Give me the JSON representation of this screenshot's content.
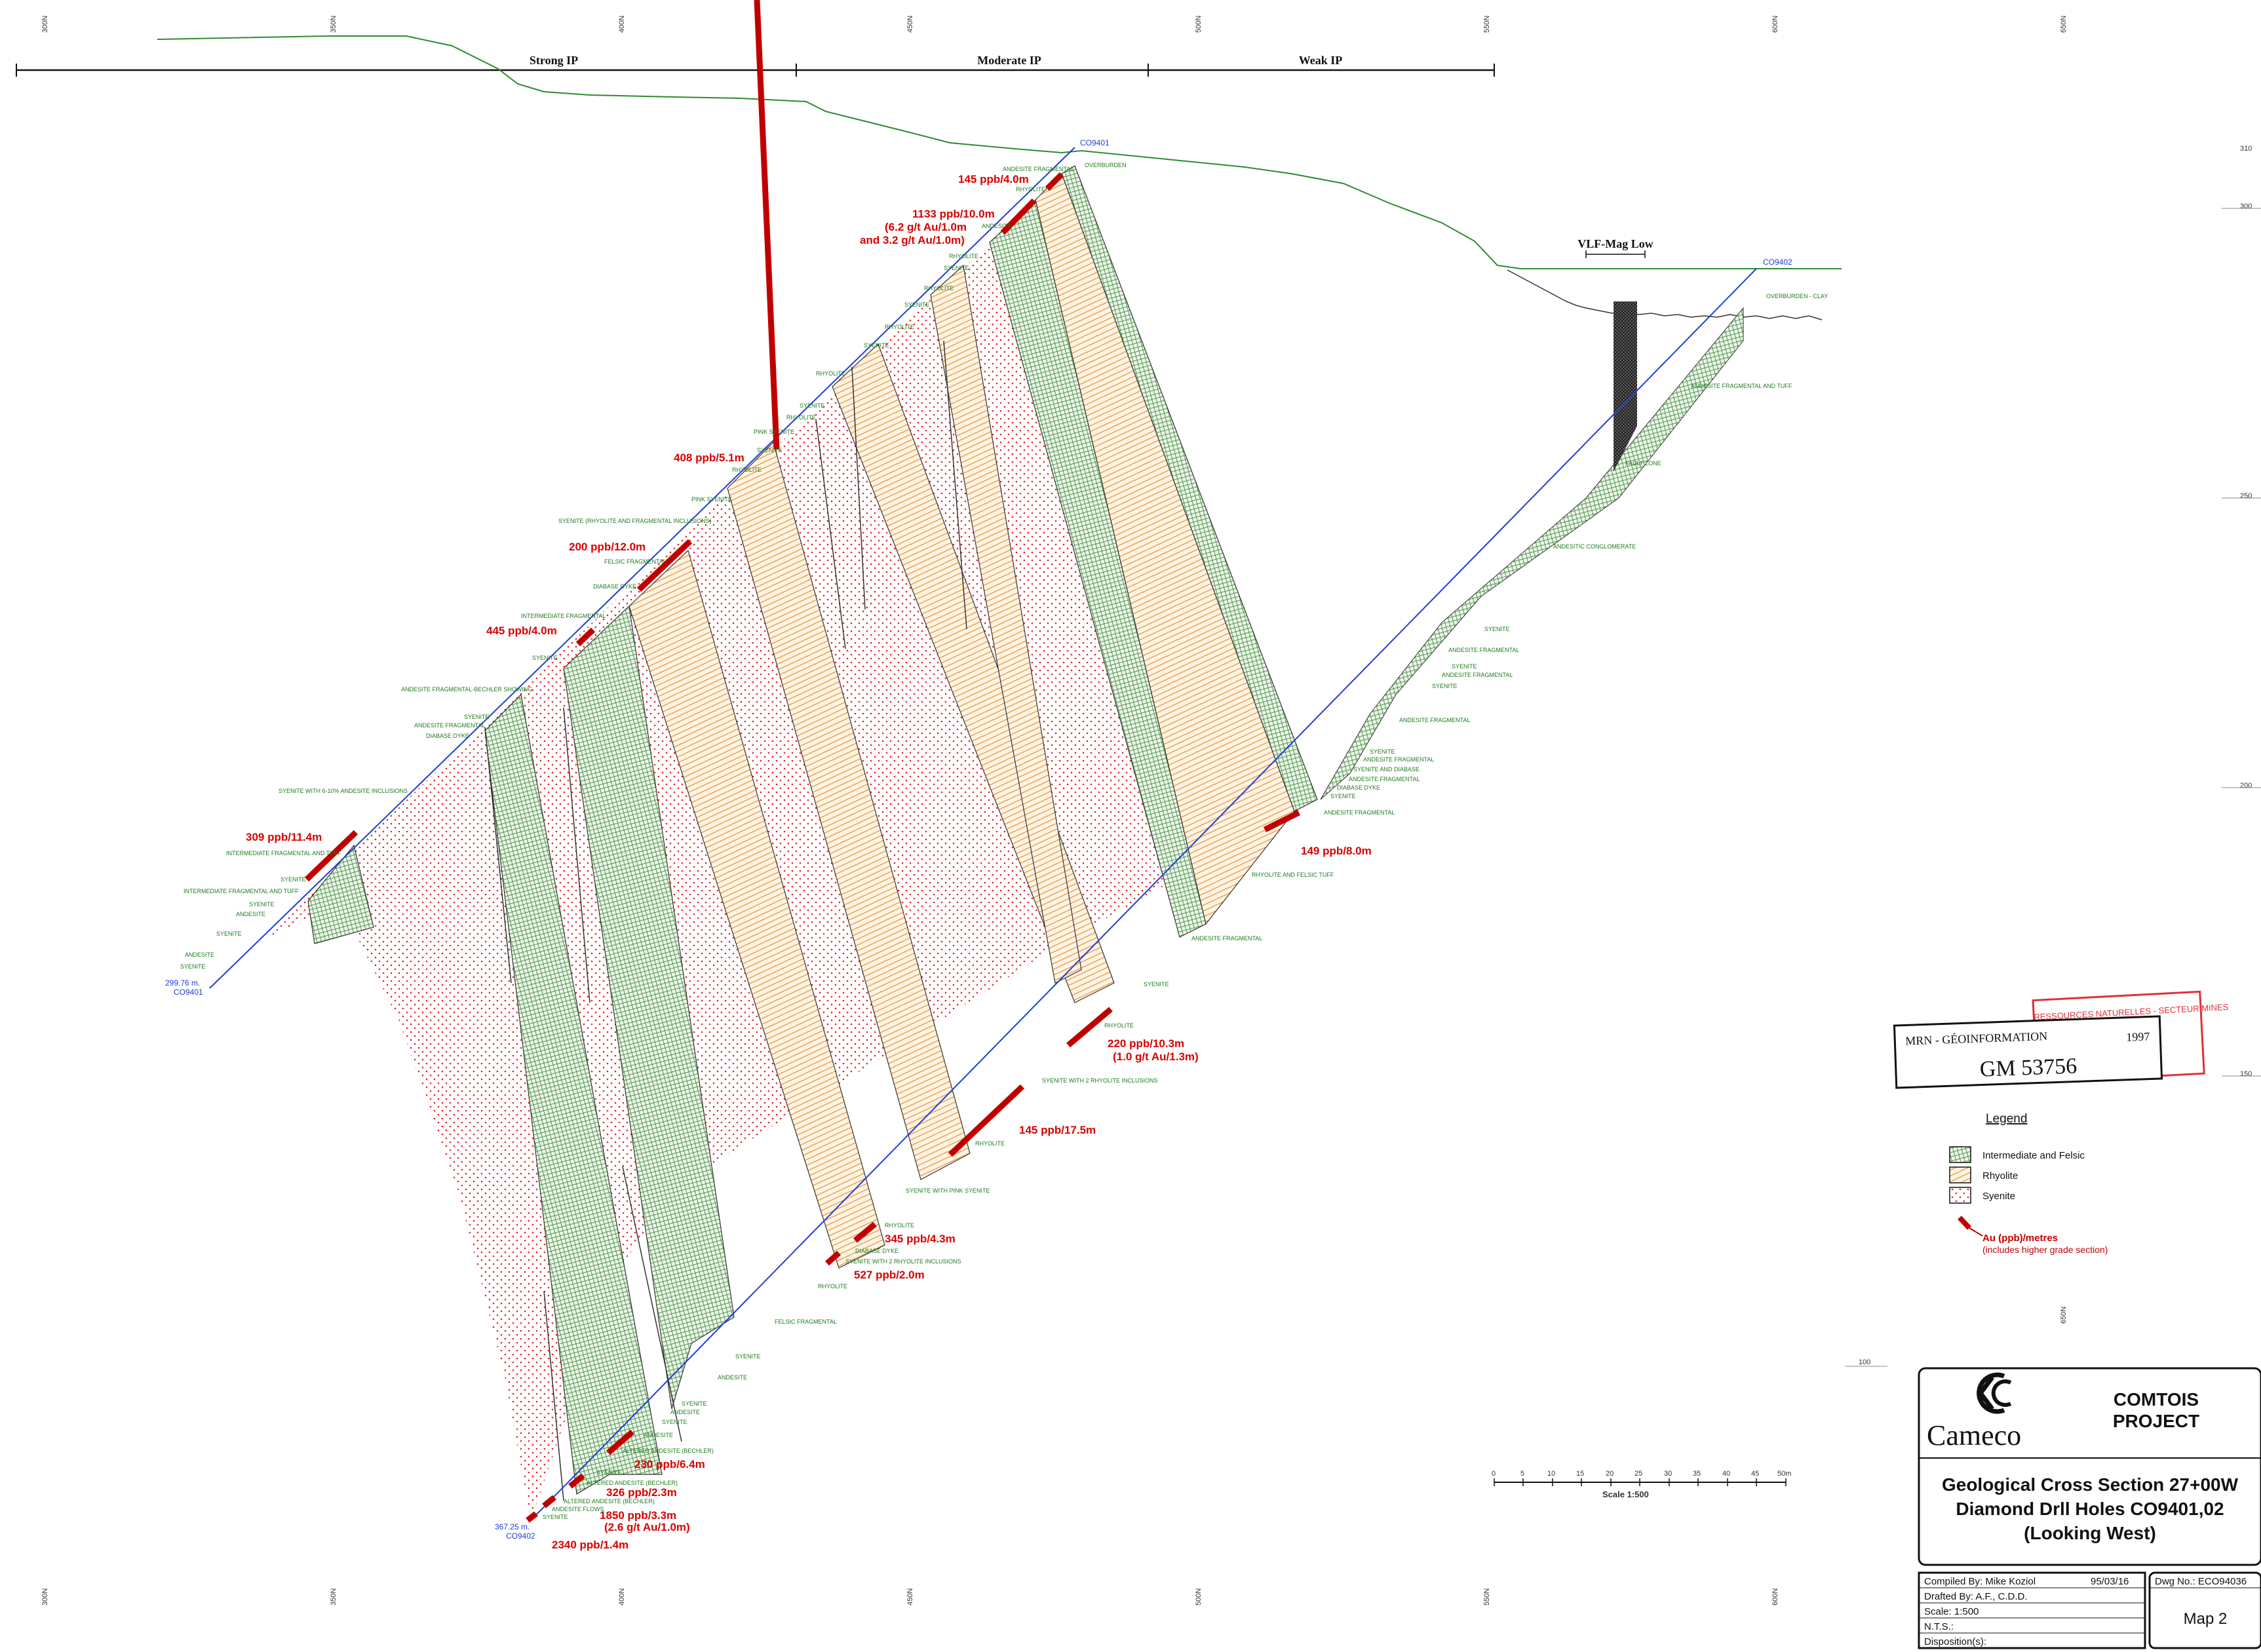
{
  "ip_zones": [
    "Strong IP",
    "Moderate IP",
    "Weak IP"
  ],
  "vlf_label": "VLF-Mag Low",
  "holes": {
    "h1": "CO9401",
    "h2": "CO9402"
  },
  "hole_end_1": {
    "depth": "299.76 m.",
    "id": "CO9401"
  },
  "hole_end_2": {
    "depth": "367.25 m.",
    "id": "CO9402"
  },
  "northing_ticks": [
    "300N",
    "350N",
    "400N",
    "450N",
    "500N",
    "550N",
    "600N",
    "650N"
  ],
  "elevation_ticks": [
    "310",
    "300",
    "250",
    "200",
    "150",
    "100"
  ],
  "gold_intercepts": [
    "145 ppb/4.0m",
    "1133 ppb/10.0m",
    "(6.2 g/t Au/1.0m",
    "and 3.2 g/t Au/1.0m)",
    "408 ppb/5.1m",
    "200 ppb/12.0m",
    "445 ppb/4.0m",
    "309 ppb/11.4m",
    "149 ppb/8.0m",
    "220 ppb/10.3m",
    "(1.0 g/t Au/1.3m)",
    "145 ppb/17.5m",
    "345 ppb/4.3m",
    "527 ppb/2.0m",
    "230 ppb/6.4m",
    "326 ppb/2.3m",
    "1850 ppb/3.3m",
    "(2.6 g/t Au/1.0m)",
    "2340 ppb/1.4m"
  ],
  "litho_labels": [
    "ANDESITE FRAGMENTAL",
    "OVERBURDEN",
    "RHYOLITE",
    "ANDESITE",
    "SYENITE",
    "PINK SYENITE",
    "SYENITE (RHYOLITE AND FRAGMENTAL INCLUSIONS)",
    "FELSIC FRAGMENTAL",
    "DIABASE DYKE",
    "INTERMEDIATE FRAGMENTAL",
    "ANDESITE FRAGMENTAL-BECHLER SHOWING",
    "SYENITE WITH 6-10% ANDESITE INCLUSIONS",
    "INTERMEDIATE FRAGMENTAL AND TUFF",
    "RHYOLITE AND FELSIC TUFF",
    "SYENITE WITH 2 RHYOLITE INCLUSIONS",
    "SYENITE WITH PINK SYENITE",
    "ALTERED ANDESITE (BECHLER)",
    "ANDESITE FLOWS",
    "OVERBURDEN - CLAY",
    "ANDESITE FRAGMENTAL AND TUFF",
    "FAULT ZONE",
    "ANDESITIC CONGLOMERATE",
    "SYENITE AND DIABASE"
  ],
  "scale_bar": {
    "ticks": [
      "0",
      "5",
      "10",
      "15",
      "20",
      "25",
      "30",
      "35",
      "40",
      "45",
      "50m"
    ],
    "label": "Scale     1:500"
  },
  "stamp": {
    "org": "MRN - GÉOINFORMATION",
    "year": "1997",
    "gm": "GM 53756",
    "red": "RESSOURCES NATURELLES - SECTEUR MINES"
  },
  "legend": {
    "title": "Legend",
    "items": [
      {
        "label": "Intermediate and Felsic",
        "color": "#2e7d32"
      },
      {
        "label": "Rhyolite",
        "color": "#e08a2c"
      },
      {
        "label": "Syenite",
        "color": "#e0202a"
      }
    ],
    "au_label": "Au (ppb)/metres",
    "au_note": "(includes higher grade section)"
  },
  "title_block": {
    "company": "Cameco",
    "project": [
      "COMTOIS",
      "PROJECT"
    ],
    "title_lines": [
      "Geological Cross Section 27+00W",
      "Diamond Drll Holes CO9401,02",
      "(Looking West)"
    ],
    "compiled": "Compiled By: Mike Koziol",
    "date": "95/03/16",
    "drafted": "Drafted By: A.F., C.D.D.",
    "scale": "Scale: 1:500",
    "nts": "N.T.S.:",
    "disposition": "Disposition(s):",
    "dwg_no": "Dwg No.: ECO94036",
    "map_no": "Map 2"
  },
  "colors": {
    "green": "#2e7d32",
    "orange": "#e08a2c",
    "red": "#e0202a",
    "intercept": "#c00000",
    "hole": "#1f3fcf",
    "topo": "#2e8b2e"
  }
}
